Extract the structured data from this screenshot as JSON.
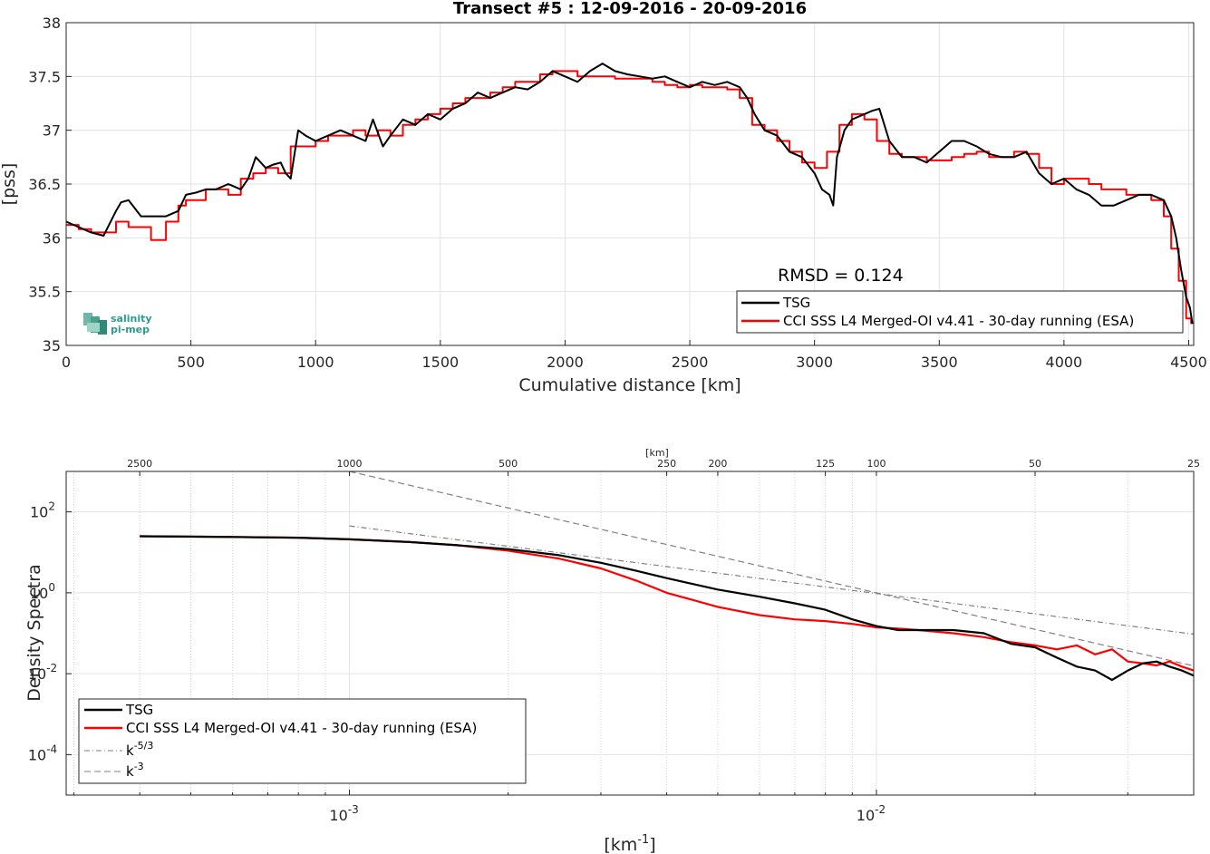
{
  "chart_data": [
    {
      "type": "line",
      "title": "Transect #5 : 12-09-2016 - 20-09-2016",
      "xlabel": "Cumulative distance [km]",
      "ylabel": "[pss]",
      "xlim": [
        0,
        4520
      ],
      "ylim": [
        35,
        38
      ],
      "xticks": [
        "0",
        "500",
        "1000",
        "1500",
        "2000",
        "2500",
        "3000",
        "3500",
        "4000",
        "4500"
      ],
      "yticks": [
        "35",
        "35.5",
        "36",
        "36.5",
        "37",
        "37.5",
        "38"
      ],
      "grid": true,
      "legend_position": "bottom-right",
      "annotation": "RMSD = 0.124",
      "logo_text": [
        "salinity",
        "pi-mep"
      ],
      "series": [
        {
          "name": "TSG",
          "color": "#000000",
          "x": [
            0,
            50,
            100,
            150,
            200,
            220,
            250,
            300,
            340,
            400,
            450,
            480,
            520,
            560,
            600,
            650,
            700,
            730,
            760,
            800,
            830,
            860,
            880,
            900,
            930,
            960,
            1000,
            1050,
            1100,
            1150,
            1200,
            1230,
            1270,
            1300,
            1350,
            1400,
            1450,
            1500,
            1550,
            1600,
            1650,
            1700,
            1750,
            1800,
            1850,
            1900,
            1950,
            2000,
            2050,
            2100,
            2150,
            2200,
            2250,
            2300,
            2350,
            2400,
            2450,
            2500,
            2550,
            2600,
            2650,
            2700,
            2730,
            2760,
            2800,
            2850,
            2900,
            2950,
            3000,
            3030,
            3060,
            3075,
            3090,
            3120,
            3150,
            3200,
            3230,
            3260,
            3300,
            3350,
            3400,
            3450,
            3500,
            3550,
            3600,
            3650,
            3700,
            3750,
            3800,
            3850,
            3900,
            3950,
            4000,
            4050,
            4100,
            4150,
            4200,
            4250,
            4300,
            4350,
            4400,
            4430,
            4450,
            4470,
            4490,
            4505,
            4515
          ],
          "values": [
            36.15,
            36.1,
            36.05,
            36.02,
            36.25,
            36.33,
            36.35,
            36.2,
            36.2,
            36.2,
            36.25,
            36.4,
            36.42,
            36.45,
            36.45,
            36.5,
            36.45,
            36.55,
            36.75,
            36.65,
            36.68,
            36.7,
            36.6,
            36.55,
            37.0,
            36.95,
            36.9,
            36.95,
            37.0,
            36.95,
            36.9,
            37.1,
            36.85,
            36.95,
            37.1,
            37.05,
            37.15,
            37.1,
            37.2,
            37.25,
            37.35,
            37.3,
            37.35,
            37.4,
            37.38,
            37.45,
            37.55,
            37.5,
            37.45,
            37.55,
            37.62,
            37.55,
            37.52,
            37.5,
            37.48,
            37.5,
            37.45,
            37.4,
            37.45,
            37.42,
            37.45,
            37.4,
            37.3,
            37.15,
            37.0,
            36.95,
            36.8,
            36.75,
            36.6,
            36.45,
            36.4,
            36.3,
            36.75,
            37.0,
            37.1,
            37.15,
            37.18,
            37.2,
            36.9,
            36.75,
            36.75,
            36.7,
            36.8,
            36.9,
            36.9,
            36.85,
            36.78,
            36.75,
            36.75,
            36.8,
            36.6,
            36.5,
            36.55,
            36.45,
            36.4,
            36.3,
            36.3,
            36.35,
            36.4,
            36.4,
            36.35,
            36.2,
            36.0,
            35.7,
            35.45,
            35.35,
            35.2
          ]
        },
        {
          "name": "CCI SSS L4 Merged-OI v4.41 - 30-day running (ESA)",
          "color": "#ff0000",
          "x": [
            0,
            50,
            100,
            150,
            200,
            250,
            300,
            340,
            400,
            450,
            480,
            520,
            560,
            600,
            650,
            700,
            750,
            800,
            850,
            900,
            950,
            1000,
            1050,
            1100,
            1150,
            1200,
            1250,
            1300,
            1350,
            1400,
            1450,
            1500,
            1550,
            1600,
            1650,
            1700,
            1750,
            1800,
            1850,
            1900,
            1950,
            2000,
            2050,
            2100,
            2150,
            2200,
            2250,
            2300,
            2350,
            2400,
            2450,
            2500,
            2550,
            2600,
            2650,
            2700,
            2750,
            2800,
            2850,
            2900,
            2950,
            3000,
            3050,
            3100,
            3150,
            3200,
            3250,
            3300,
            3350,
            3400,
            3450,
            3500,
            3550,
            3600,
            3650,
            3700,
            3750,
            3800,
            3850,
            3900,
            3950,
            4000,
            4050,
            4100,
            4150,
            4200,
            4250,
            4300,
            4350,
            4400,
            4430,
            4460,
            4490,
            4510
          ],
          "values": [
            36.12,
            36.08,
            36.05,
            36.05,
            36.15,
            36.1,
            36.1,
            35.98,
            36.15,
            36.3,
            36.35,
            36.35,
            36.45,
            36.45,
            36.4,
            36.55,
            36.6,
            36.65,
            36.6,
            36.85,
            36.85,
            36.9,
            36.95,
            36.95,
            37.0,
            36.95,
            37.0,
            36.95,
            37.05,
            37.1,
            37.15,
            37.2,
            37.25,
            37.3,
            37.3,
            37.35,
            37.4,
            37.45,
            37.45,
            37.52,
            37.55,
            37.55,
            37.5,
            37.5,
            37.5,
            37.48,
            37.48,
            37.48,
            37.45,
            37.42,
            37.4,
            37.42,
            37.4,
            37.4,
            37.38,
            37.3,
            37.05,
            37.0,
            36.9,
            36.8,
            36.7,
            36.65,
            36.8,
            37.05,
            37.15,
            37.1,
            36.9,
            36.78,
            36.75,
            36.75,
            36.72,
            36.72,
            36.75,
            36.78,
            36.8,
            36.75,
            36.75,
            36.8,
            36.78,
            36.65,
            36.5,
            36.55,
            36.55,
            36.5,
            36.45,
            36.45,
            36.4,
            36.4,
            36.35,
            36.2,
            35.9,
            35.6,
            35.25,
            35.2
          ]
        }
      ]
    },
    {
      "type": "line",
      "title": "",
      "xlabel": "[km",
      "xlabel_sup": "-1",
      "xlabel_end": "]",
      "ylabel": "Density Spectra",
      "x_scale": "log",
      "y_scale": "log",
      "xlim": [
        0.00029,
        0.04
      ],
      "ylim": [
        1e-05,
        1000
      ],
      "xticks": [
        {
          "base": "10",
          "exp": "-3",
          "value": 0.001
        },
        {
          "base": "10",
          "exp": "-2",
          "value": 0.01
        }
      ],
      "yticks": [
        {
          "base": "10",
          "exp": "2",
          "value": 100
        },
        {
          "base": "10",
          "exp": "0",
          "value": 1
        },
        {
          "base": "10",
          "exp": "-2",
          "value": 0.01
        },
        {
          "base": "10",
          "exp": "-4",
          "value": 0.0001
        }
      ],
      "top_axis_label": "[km]",
      "top_ticks": [
        "2500",
        "1000",
        "500",
        "250",
        "200",
        "125",
        "100",
        "50",
        "25"
      ],
      "grid": true,
      "legend_position": "bottom-left",
      "series": [
        {
          "name": "TSG",
          "color": "#000000",
          "x": [
            0.0004,
            0.0006,
            0.0008,
            0.001,
            0.0013,
            0.0016,
            0.002,
            0.0025,
            0.003,
            0.0035,
            0.004,
            0.005,
            0.006,
            0.007,
            0.008,
            0.009,
            0.01,
            0.011,
            0.012,
            0.014,
            0.016,
            0.018,
            0.02,
            0.022,
            0.024,
            0.026,
            0.028,
            0.03,
            0.032,
            0.034,
            0.036,
            0.038,
            0.04
          ],
          "values": [
            25,
            24,
            23,
            21,
            18,
            15,
            12,
            8.5,
            5.5,
            3.5,
            2.3,
            1.2,
            0.8,
            0.55,
            0.38,
            0.22,
            0.15,
            0.12,
            0.12,
            0.12,
            0.1,
            0.055,
            0.045,
            0.025,
            0.015,
            0.012,
            0.007,
            0.012,
            0.018,
            0.02,
            0.015,
            0.012,
            0.009
          ]
        },
        {
          "name": "CCI SSS L4 Merged-OI v4.41 - 30-day running (ESA)",
          "color": "#ff0000",
          "x": [
            0.0004,
            0.0006,
            0.0008,
            0.001,
            0.0013,
            0.0016,
            0.002,
            0.0025,
            0.003,
            0.0035,
            0.004,
            0.005,
            0.006,
            0.007,
            0.008,
            0.009,
            0.01,
            0.011,
            0.012,
            0.014,
            0.016,
            0.018,
            0.02,
            0.022,
            0.024,
            0.026,
            0.028,
            0.03,
            0.032,
            0.034,
            0.036,
            0.038,
            0.04
          ],
          "values": [
            25,
            24,
            23,
            21,
            18,
            15,
            11,
            7,
            4,
            2,
            1.0,
            0.45,
            0.28,
            0.22,
            0.2,
            0.17,
            0.14,
            0.13,
            0.12,
            0.1,
            0.08,
            0.06,
            0.05,
            0.04,
            0.05,
            0.03,
            0.04,
            0.02,
            0.018,
            0.016,
            0.02,
            0.015,
            0.012
          ]
        },
        {
          "name": "k-5/3",
          "color": "#808080",
          "dash": "dash-dot",
          "x": [
            0.001,
            0.04
          ],
          "values": [
            45,
            0.095
          ]
        },
        {
          "name": "k-3",
          "color": "#808080",
          "dash": "dashed",
          "x": [
            0.001,
            0.04
          ],
          "values": [
            1000,
            0.0156
          ]
        }
      ],
      "legend": [
        {
          "label": "TSG"
        },
        {
          "label": "CCI SSS L4 Merged-OI v4.41 - 30-day running (ESA)"
        },
        {
          "label": "k",
          "sup": "-5/3"
        },
        {
          "label": "k",
          "sup": "-3"
        }
      ]
    }
  ]
}
